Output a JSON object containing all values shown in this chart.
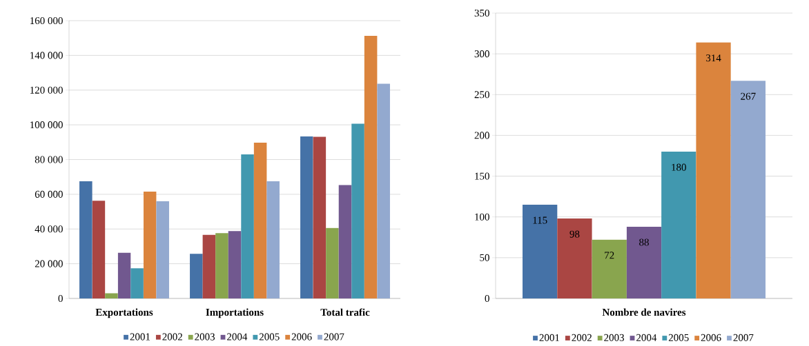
{
  "chart_data": [
    {
      "type": "bar",
      "categories": [
        "Exportations",
        "Importations",
        "Total trafic"
      ],
      "series": [
        {
          "name": "2001",
          "color": "#4572a7",
          "values": [
            67500,
            25700,
            93400
          ]
        },
        {
          "name": "2002",
          "color": "#aa4643",
          "values": [
            56300,
            36600,
            93100
          ]
        },
        {
          "name": "2003",
          "color": "#89a54e",
          "values": [
            3000,
            37600,
            40600
          ]
        },
        {
          "name": "2004",
          "color": "#71588f",
          "values": [
            26300,
            38800,
            65300
          ]
        },
        {
          "name": "2005",
          "color": "#4198af",
          "values": [
            17400,
            83000,
            100600
          ]
        },
        {
          "name": "2006",
          "color": "#db843d",
          "values": [
            61500,
            89700,
            151300
          ]
        },
        {
          "name": "2007",
          "color": "#93a9cf",
          "values": [
            56000,
            67500,
            123700
          ]
        }
      ],
      "ylim": [
        0,
        160000
      ],
      "yticks": [
        0,
        {
          "value": 20000,
          "label": "20 000"
        },
        {
          "value": 40000,
          "label": "40 000"
        },
        {
          "value": 60000,
          "label": "60 000"
        },
        {
          "value": 80000,
          "label": "80 000"
        },
        {
          "value": 100000,
          "label": "100 000"
        },
        {
          "value": 120000,
          "label": "120 000"
        },
        {
          "value": 140000,
          "label": "140 000"
        },
        {
          "value": 160000,
          "label": "160 000"
        }
      ],
      "grid": "y",
      "legend": "bottom"
    },
    {
      "type": "bar",
      "categories": [
        "Nombre de navires"
      ],
      "series": [
        {
          "name": "2001",
          "color": "#4572a7",
          "values": [
            115
          ]
        },
        {
          "name": "2002",
          "color": "#aa4643",
          "values": [
            98
          ]
        },
        {
          "name": "2003",
          "color": "#89a54e",
          "values": [
            72
          ]
        },
        {
          "name": "2004",
          "color": "#71588f",
          "values": [
            88
          ]
        },
        {
          "name": "2005",
          "color": "#4198af",
          "values": [
            180
          ]
        },
        {
          "name": "2006",
          "color": "#db843d",
          "values": [
            314
          ]
        },
        {
          "name": "2007",
          "color": "#93a9cf",
          "values": [
            267
          ]
        }
      ],
      "ylim": [
        0,
        350
      ],
      "yticks": [
        0,
        50,
        100,
        150,
        200,
        250,
        300,
        350
      ],
      "grid": "y",
      "legend": "bottom",
      "data_labels": true
    }
  ]
}
